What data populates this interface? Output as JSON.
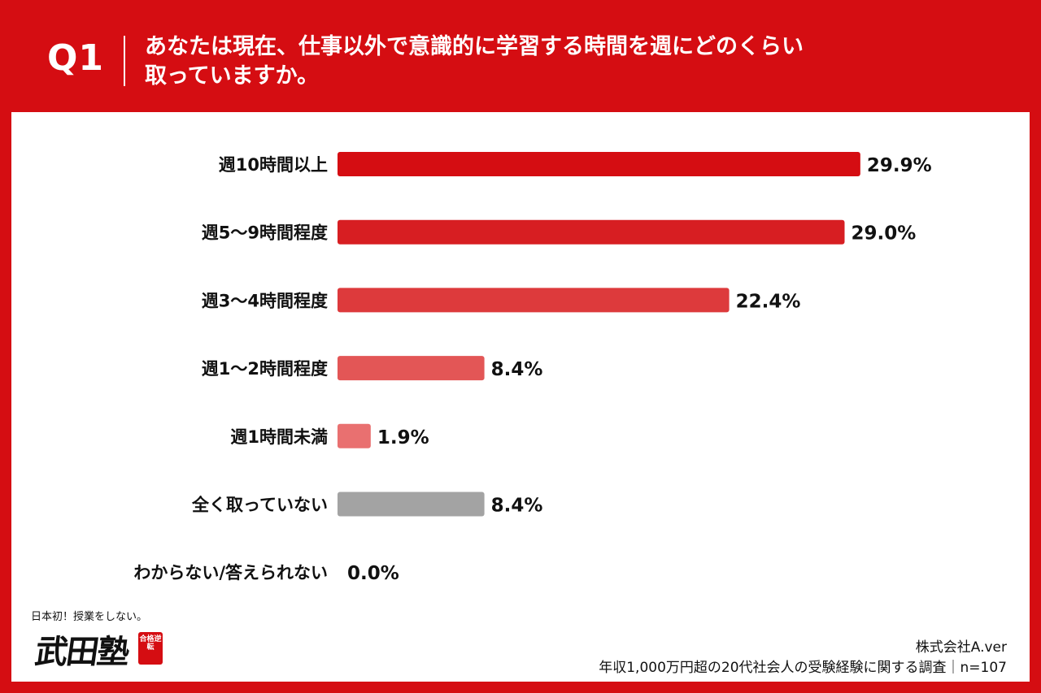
{
  "header": {
    "q_number": "Q1",
    "question_line1": "あなたは現在、仕事以外で意識的に学習する時間を週にどのくらい",
    "question_line2": "取っていますか。"
  },
  "chart_data": {
    "type": "bar",
    "orientation": "horizontal",
    "categories": [
      "週10時間以上",
      "週5～9時間程度",
      "週3～4時間程度",
      "週1～2時間程度",
      "週1時間未満",
      "全く取っていない",
      "わからない/答えられない"
    ],
    "values": [
      29.9,
      29.0,
      22.4,
      8.4,
      1.9,
      8.4,
      0.0
    ],
    "value_labels": [
      "29.9%",
      "29.0%",
      "22.4%",
      "8.4%",
      "1.9%",
      "8.4%",
      "0.0%"
    ],
    "colors": [
      "#d50d12",
      "#d71e22",
      "#dd3a3c",
      "#e35656",
      "#e97070",
      "#a3a3a3",
      "#a3a3a3"
    ],
    "xlim": [
      0,
      30
    ],
    "grid": false,
    "legend": "none"
  },
  "logo": {
    "tagline": "日本初！授業をしない。",
    "mark": "武田塾",
    "stamp": "合格逆転"
  },
  "footer": {
    "company": "株式会社A.ver",
    "source": "年収1,000万円超の20代社会人の受験経験に関する調査｜n=107"
  }
}
